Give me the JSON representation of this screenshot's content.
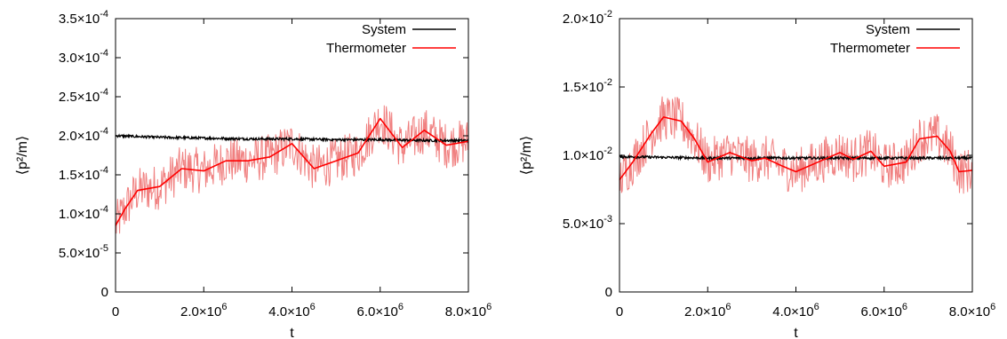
{
  "chart_data": [
    {
      "type": "line",
      "xlabel": "t",
      "ylabel": "⟨p²/m⟩",
      "xlim": [
        0,
        8000000
      ],
      "ylim": [
        0,
        0.00035
      ],
      "x_ticks": [
        {
          "value": 0,
          "mant": "0",
          "exp": ""
        },
        {
          "value": 2000000,
          "mant": "2.0×10",
          "exp": "6"
        },
        {
          "value": 4000000,
          "mant": "4.0×10",
          "exp": "6"
        },
        {
          "value": 6000000,
          "mant": "6.0×10",
          "exp": "6"
        },
        {
          "value": 8000000,
          "mant": "8.0×10",
          "exp": "6"
        }
      ],
      "y_ticks": [
        {
          "value": 0,
          "mant": "0",
          "exp": ""
        },
        {
          "value": 5e-05,
          "mant": "5.0×10",
          "exp": "-5"
        },
        {
          "value": 0.0001,
          "mant": "1.0×10",
          "exp": "-4"
        },
        {
          "value": 0.00015,
          "mant": "1.5×10",
          "exp": "-4"
        },
        {
          "value": 0.0002,
          "mant": "2.0×10",
          "exp": "-4"
        },
        {
          "value": 0.00025,
          "mant": "2.5×10",
          "exp": "-4"
        },
        {
          "value": 0.0003,
          "mant": "3.0×10",
          "exp": "-4"
        },
        {
          "value": 0.00035,
          "mant": "3.5×10",
          "exp": "-4"
        }
      ],
      "legend_position": "top-right",
      "grid": false,
      "series": [
        {
          "name": "System",
          "color": "#000000",
          "x": [
            0,
            1000000,
            2000000,
            3000000,
            4000000,
            5000000,
            6000000,
            7000000,
            8000000
          ],
          "y": [
            0.0002,
            0.000198,
            0.000197,
            0.000196,
            0.000196,
            0.000195,
            0.000195,
            0.000194,
            0.000194
          ]
        },
        {
          "name": "Thermometer",
          "color": "#ff0000",
          "x": [
            0,
            200000,
            500000,
            1000000,
            1500000,
            2000000,
            2500000,
            3000000,
            3500000,
            4000000,
            4500000,
            5000000,
            5500000,
            6000000,
            6500000,
            7000000,
            7500000,
            8000000
          ],
          "y": [
            8.5e-05,
            0.000105,
            0.00013,
            0.000135,
            0.000158,
            0.000155,
            0.000168,
            0.000168,
            0.000173,
            0.00019,
            0.000158,
            0.000168,
            0.000178,
            0.000222,
            0.000185,
            0.000207,
            0.000188,
            0.000193
          ]
        }
      ]
    },
    {
      "type": "line",
      "xlabel": "t",
      "ylabel": "⟨p²/m⟩",
      "xlim": [
        0,
        8000000
      ],
      "ylim": [
        0,
        0.02
      ],
      "x_ticks": [
        {
          "value": 0,
          "mant": "0",
          "exp": ""
        },
        {
          "value": 2000000,
          "mant": "2.0×10",
          "exp": "6"
        },
        {
          "value": 4000000,
          "mant": "4.0×10",
          "exp": "6"
        },
        {
          "value": 6000000,
          "mant": "6.0×10",
          "exp": "6"
        },
        {
          "value": 8000000,
          "mant": "8.0×10",
          "exp": "6"
        }
      ],
      "y_ticks": [
        {
          "value": 0,
          "mant": "0",
          "exp": ""
        },
        {
          "value": 0.005,
          "mant": "5.0×10",
          "exp": "-3"
        },
        {
          "value": 0.01,
          "mant": "1.0×10",
          "exp": "-2"
        },
        {
          "value": 0.015,
          "mant": "1.5×10",
          "exp": "-2"
        },
        {
          "value": 0.02,
          "mant": "2.0×10",
          "exp": "-2"
        }
      ],
      "legend_position": "top-right",
      "grid": false,
      "series": [
        {
          "name": "System",
          "color": "#000000",
          "x": [
            0,
            2000000,
            4000000,
            6000000,
            8000000
          ],
          "y": [
            0.0099,
            0.0098,
            0.0098,
            0.0098,
            0.0098
          ]
        },
        {
          "name": "Thermometer",
          "color": "#ff0000",
          "x": [
            0,
            300000,
            700000,
            1000000,
            1400000,
            1700000,
            2000000,
            2500000,
            3000000,
            3300000,
            3700000,
            4000000,
            4500000,
            5000000,
            5300000,
            5700000,
            6000000,
            6500000,
            6800000,
            7200000,
            7500000,
            7700000,
            8000000
          ],
          "y": [
            0.0082,
            0.0095,
            0.0115,
            0.0128,
            0.0125,
            0.0112,
            0.0095,
            0.0102,
            0.0096,
            0.0098,
            0.0092,
            0.0088,
            0.0095,
            0.0102,
            0.0097,
            0.0103,
            0.0092,
            0.0095,
            0.0112,
            0.0114,
            0.0103,
            0.0088,
            0.0089
          ]
        }
      ]
    }
  ]
}
